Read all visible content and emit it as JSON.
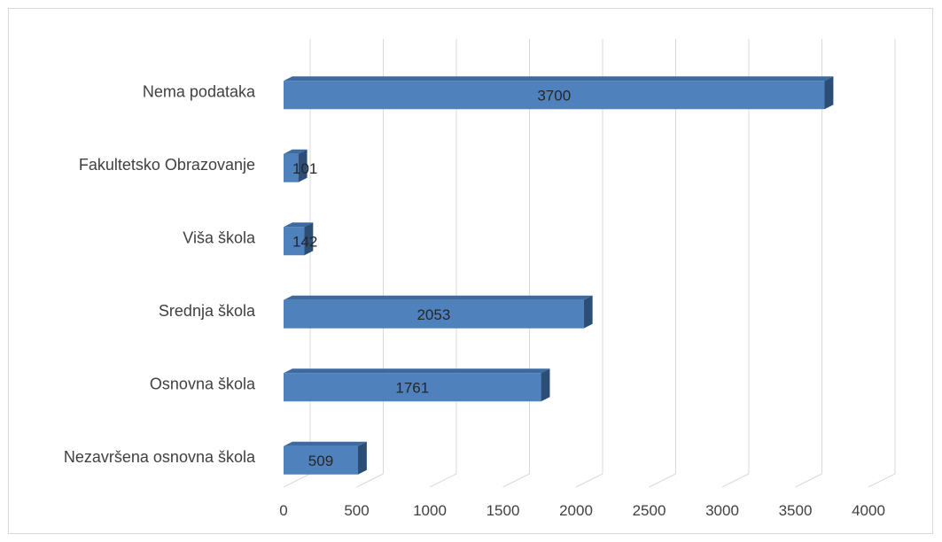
{
  "chart_data": {
    "type": "bar",
    "orientation": "horizontal",
    "style": "3d",
    "categories": [
      "Nezavršena osnovna škola",
      "Osnovna škola",
      "Srednja škola",
      "Viša škola",
      "Fakultetsko Obrazovanje",
      "Nema podataka"
    ],
    "values": [
      509,
      1761,
      2053,
      142,
      101,
      3700
    ],
    "xlim": [
      0,
      4000
    ],
    "xticks": [
      0,
      500,
      1000,
      1500,
      2000,
      2500,
      3000,
      3500,
      4000
    ],
    "grid": true,
    "legend": "none",
    "colors": {
      "bar_front": "#4f81bd",
      "bar_top": "#3d6aa0",
      "bar_side": "#2c4d75",
      "grid": "#d9d9d9"
    }
  }
}
